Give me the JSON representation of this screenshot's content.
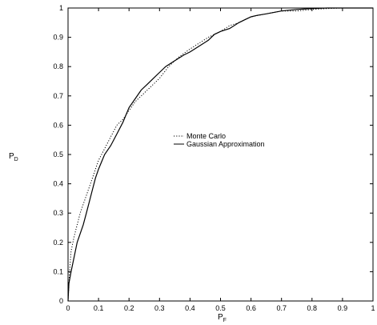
{
  "chart_data": {
    "type": "line",
    "title": "",
    "xlabel": {
      "main": "P",
      "sub": "F"
    },
    "ylabel": {
      "main": "P",
      "sub": "D"
    },
    "xlim": [
      0,
      1
    ],
    "ylim": [
      0,
      1
    ],
    "xticks": [
      0,
      0.1,
      0.2,
      0.3,
      0.4,
      0.5,
      0.6,
      0.7,
      0.8,
      0.9,
      1
    ],
    "yticks": [
      0,
      0.1,
      0.2,
      0.3,
      0.4,
      0.5,
      0.6,
      0.7,
      0.8,
      0.9,
      1
    ],
    "xtick_labels": [
      "0",
      "0.1",
      "0.2",
      "0.3",
      "0.4",
      "0.5",
      "0.6",
      "0.7",
      "0.8",
      "0.9",
      "1"
    ],
    "ytick_labels": [
      "0",
      "0.1",
      "0.2",
      "0.3",
      "0.4",
      "0.5",
      "0.6",
      "0.7",
      "0.8",
      "0.9",
      "1"
    ],
    "grid": false,
    "legend_position": "center",
    "series": [
      {
        "name": "Monte Carlo",
        "style": "dotted",
        "color": "#000000",
        "x": [
          0,
          0.005,
          0.01,
          0.02,
          0.03,
          0.04,
          0.05,
          0.06,
          0.08,
          0.1,
          0.12,
          0.14,
          0.16,
          0.18,
          0.2,
          0.22,
          0.25,
          0.28,
          0.3,
          0.33,
          0.36,
          0.4,
          0.43,
          0.46,
          0.5,
          0.53,
          0.56,
          0.6,
          0.65,
          0.7,
          0.75,
          0.8,
          0.85,
          0.9,
          0.95,
          1
        ],
        "y": [
          0,
          0.1,
          0.17,
          0.22,
          0.26,
          0.3,
          0.33,
          0.36,
          0.42,
          0.48,
          0.52,
          0.56,
          0.6,
          0.62,
          0.65,
          0.68,
          0.71,
          0.74,
          0.76,
          0.8,
          0.83,
          0.86,
          0.88,
          0.9,
          0.92,
          0.94,
          0.95,
          0.97,
          0.98,
          0.99,
          0.99,
          0.995,
          0.998,
          1,
          1,
          1
        ]
      },
      {
        "name": "Gaussian Approximation",
        "style": "solid",
        "color": "#000000",
        "x": [
          0,
          0.003,
          0.01,
          0.02,
          0.03,
          0.04,
          0.05,
          0.06,
          0.07,
          0.08,
          0.09,
          0.1,
          0.12,
          0.14,
          0.16,
          0.18,
          0.2,
          0.22,
          0.24,
          0.26,
          0.28,
          0.3,
          0.32,
          0.35,
          0.38,
          0.4,
          0.43,
          0.46,
          0.48,
          0.5,
          0.53,
          0.56,
          0.58,
          0.6,
          0.62,
          0.65,
          0.7,
          0.75,
          0.8,
          0.85,
          0.9,
          0.95,
          1
        ],
        "y": [
          0,
          0.06,
          0.1,
          0.15,
          0.2,
          0.23,
          0.26,
          0.3,
          0.34,
          0.38,
          0.42,
          0.45,
          0.5,
          0.53,
          0.57,
          0.61,
          0.66,
          0.69,
          0.72,
          0.74,
          0.76,
          0.78,
          0.8,
          0.82,
          0.84,
          0.85,
          0.87,
          0.89,
          0.91,
          0.92,
          0.93,
          0.95,
          0.96,
          0.97,
          0.975,
          0.98,
          0.99,
          0.995,
          0.998,
          1,
          1,
          1,
          1
        ]
      }
    ]
  }
}
